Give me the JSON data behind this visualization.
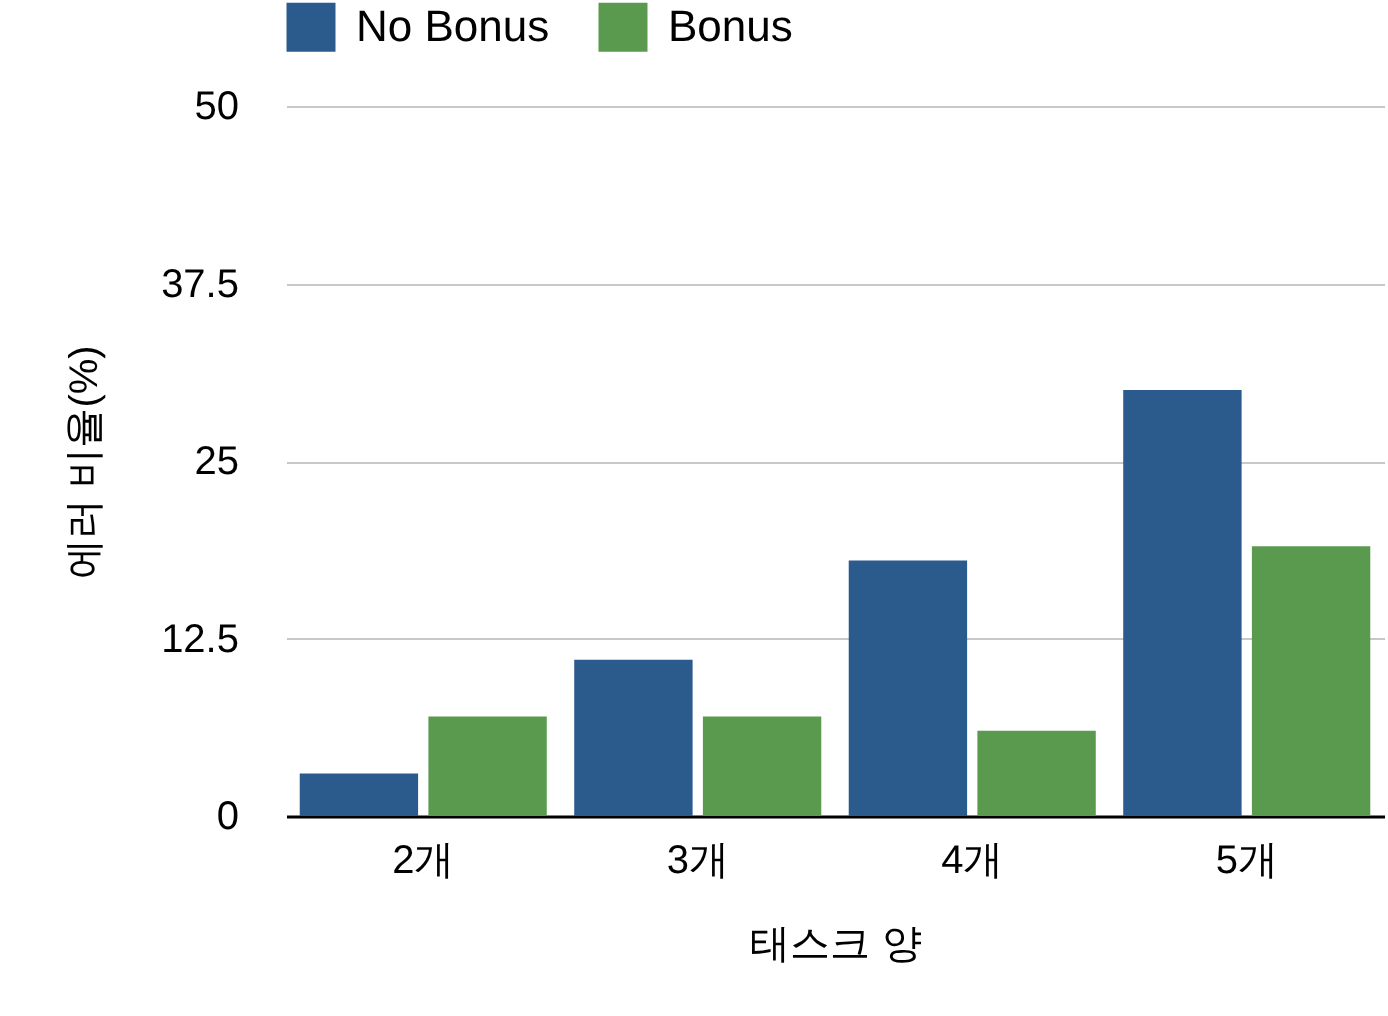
{
  "chart_data": {
    "type": "bar",
    "xlabel": "태스크 양",
    "ylabel": "에러 비율(%)",
    "categories": [
      "2개",
      "3개",
      "4개",
      "5개"
    ],
    "series": [
      {
        "name": "No Bonus",
        "color": "#2b5a8c",
        "values": [
          3,
          11,
          18,
          30
        ]
      },
      {
        "name": "Bonus",
        "color": "#5a9a4e",
        "values": [
          7,
          7,
          6,
          19
        ]
      }
    ],
    "ylim": [
      0,
      50
    ],
    "yticks": [
      0,
      12.5,
      25,
      37.5,
      50
    ],
    "grid": "y",
    "legend": "top left"
  }
}
